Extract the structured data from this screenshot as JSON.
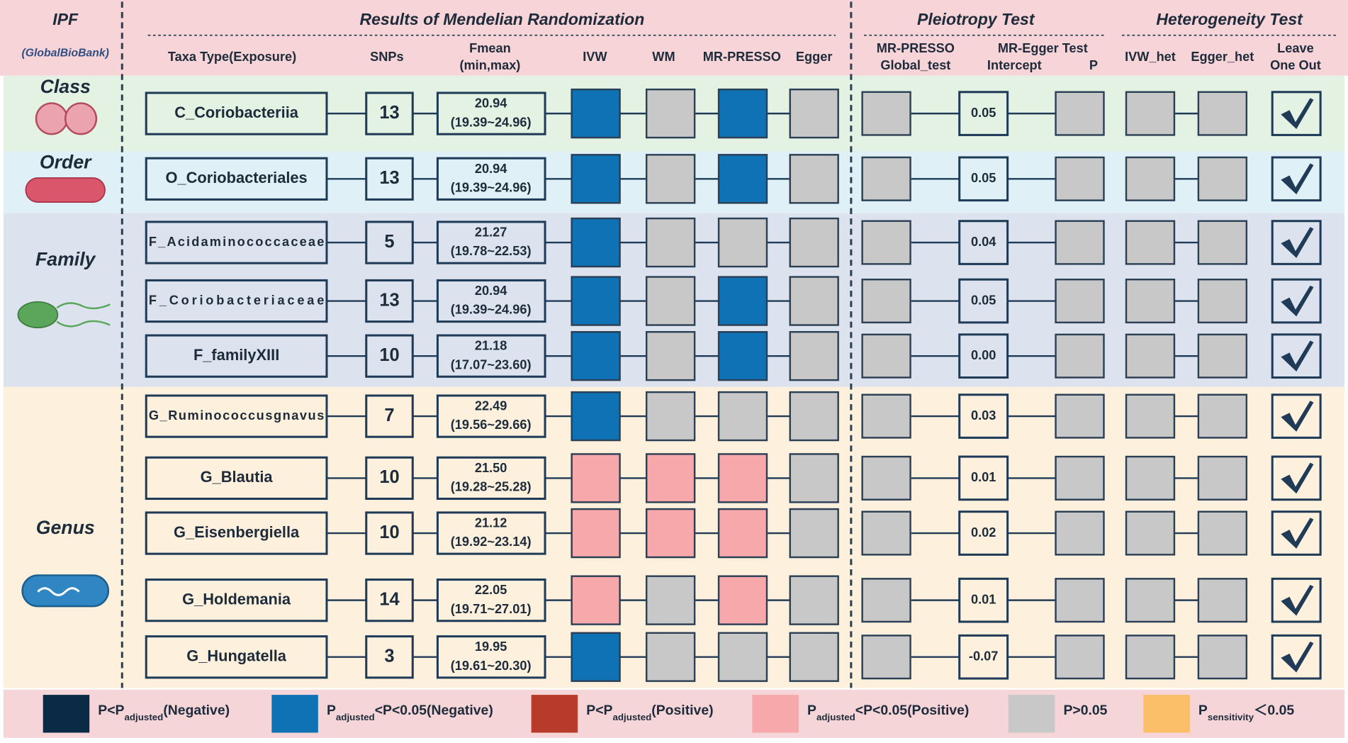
{
  "header": {
    "outcome": "IPF",
    "source": "(GlobalBioBank)",
    "title": "Results of Mendelian Randomization",
    "pleiotropy": "Pleiotropy Test",
    "heterogeneity": "Heterogeneity Test"
  },
  "columns": [
    [
      "Taxa Type(Exposure)"
    ],
    [
      "SNPs"
    ],
    [
      "Fmean",
      "(min,max)"
    ],
    [
      "IVW"
    ],
    [
      "WM"
    ],
    [
      "MR-PRESSO"
    ],
    [
      "Egger"
    ],
    [
      "MR-PRESSO",
      "Global_test"
    ],
    [
      "MR-Egger Test"
    ],
    [
      "Intercept"
    ],
    [
      "P"
    ],
    [
      "IVW_het"
    ],
    [
      "Egger_het"
    ],
    [
      "Leave",
      "One Out"
    ]
  ],
  "test_color": "#c8c8c8",
  "groups": [
    {
      "label": "Class",
      "color": "#e3f2e3",
      "rows": [
        {
          "taxa": "C_Coriobacteriia",
          "snps": 13,
          "fmean": "20.94",
          "range": "(19.39~24.96)",
          "mr": [
            "#0e72b5",
            "#c8c8c8",
            "#0e72b5",
            "#c8c8c8"
          ],
          "intercept": "0.05"
        }
      ]
    },
    {
      "label": "Order",
      "color": "#dff1f6",
      "rows": [
        {
          "taxa": "O_Coriobacteriales",
          "snps": 13,
          "fmean": "20.94",
          "range": "(19.39~24.96)",
          "mr": [
            "#0e72b5",
            "#c8c8c8",
            "#0e72b5",
            "#c8c8c8"
          ],
          "intercept": "0.05"
        }
      ]
    },
    {
      "label": "Family",
      "color": "#dde3ee",
      "rows": [
        {
          "taxa": "F_Acidaminococcaceae",
          "snps": 5,
          "fmean": "21.27",
          "range": "(19.78~22.53)",
          "mr": [
            "#0e72b5",
            "#c8c8c8",
            "#c8c8c8",
            "#c8c8c8"
          ],
          "intercept": "0.04"
        },
        {
          "taxa": "F_Coriobacteriaceae",
          "snps": 13,
          "fmean": "20.94",
          "range": "(19.39~24.96)",
          "mr": [
            "#0e72b5",
            "#c8c8c8",
            "#0e72b5",
            "#c8c8c8"
          ],
          "intercept": "0.05"
        },
        {
          "taxa": "F_familyXIII",
          "snps": 10,
          "fmean": "21.18",
          "range": "(17.07~23.60)",
          "mr": [
            "#0e72b5",
            "#c8c8c8",
            "#0e72b5",
            "#c8c8c8"
          ],
          "intercept": "0.00"
        }
      ]
    },
    {
      "label": "Genus",
      "color": "#fdf0dc",
      "rows": [
        {
          "taxa": "G_Ruminococcusgnavus",
          "snps": 7,
          "fmean": "22.49",
          "range": "(19.56~29.66)",
          "mr": [
            "#0e72b5",
            "#c8c8c8",
            "#c8c8c8",
            "#c8c8c8"
          ],
          "intercept": "0.03"
        },
        {
          "taxa": "G_Blautia",
          "snps": 10,
          "fmean": "21.50",
          "range": "(19.28~25.28)",
          "mr": [
            "#f6a8aa",
            "#f6a8aa",
            "#f6a8aa",
            "#c8c8c8"
          ],
          "intercept": "0.01"
        },
        {
          "taxa": "G_Eisenbergiella",
          "snps": 10,
          "fmean": "21.12",
          "range": "(19.92~23.14)",
          "mr": [
            "#f6a8aa",
            "#f6a8aa",
            "#f6a8aa",
            "#c8c8c8"
          ],
          "intercept": "0.02"
        },
        {
          "taxa": "G_Holdemania",
          "snps": 14,
          "fmean": "22.05",
          "range": "(19.71~27.01)",
          "mr": [
            "#f6a8aa",
            "#c8c8c8",
            "#f6a8aa",
            "#c8c8c8"
          ],
          "intercept": "0.01"
        },
        {
          "taxa": "G_Hungatella",
          "snps": 3,
          "fmean": "19.95",
          "range": "(19.61~20.30)",
          "mr": [
            "#0e72b5",
            "#c8c8c8",
            "#c8c8c8",
            "#c8c8c8"
          ],
          "intercept": "-0.07"
        }
      ]
    }
  ],
  "legend": [
    {
      "color": "#0b2a45",
      "label": [
        "P<P",
        "adjusted",
        "(Negative)"
      ]
    },
    {
      "color": "#0e72b5",
      "label": [
        "P",
        "adjusted",
        "<P<0.05(Negative)"
      ]
    },
    {
      "color": "#b83a2a",
      "label": [
        "P<P",
        "adjusted",
        "(Positive)"
      ]
    },
    {
      "color": "#f6a8aa",
      "label": [
        "P",
        "adjusted",
        "<P<0.05(Positive)"
      ]
    },
    {
      "color": "#c8c8c8",
      "label": [
        "P>0.05"
      ]
    },
    {
      "color": "#fbbf6a",
      "label": [
        "P",
        "sensitivity",
        "＜0.05"
      ]
    }
  ]
}
